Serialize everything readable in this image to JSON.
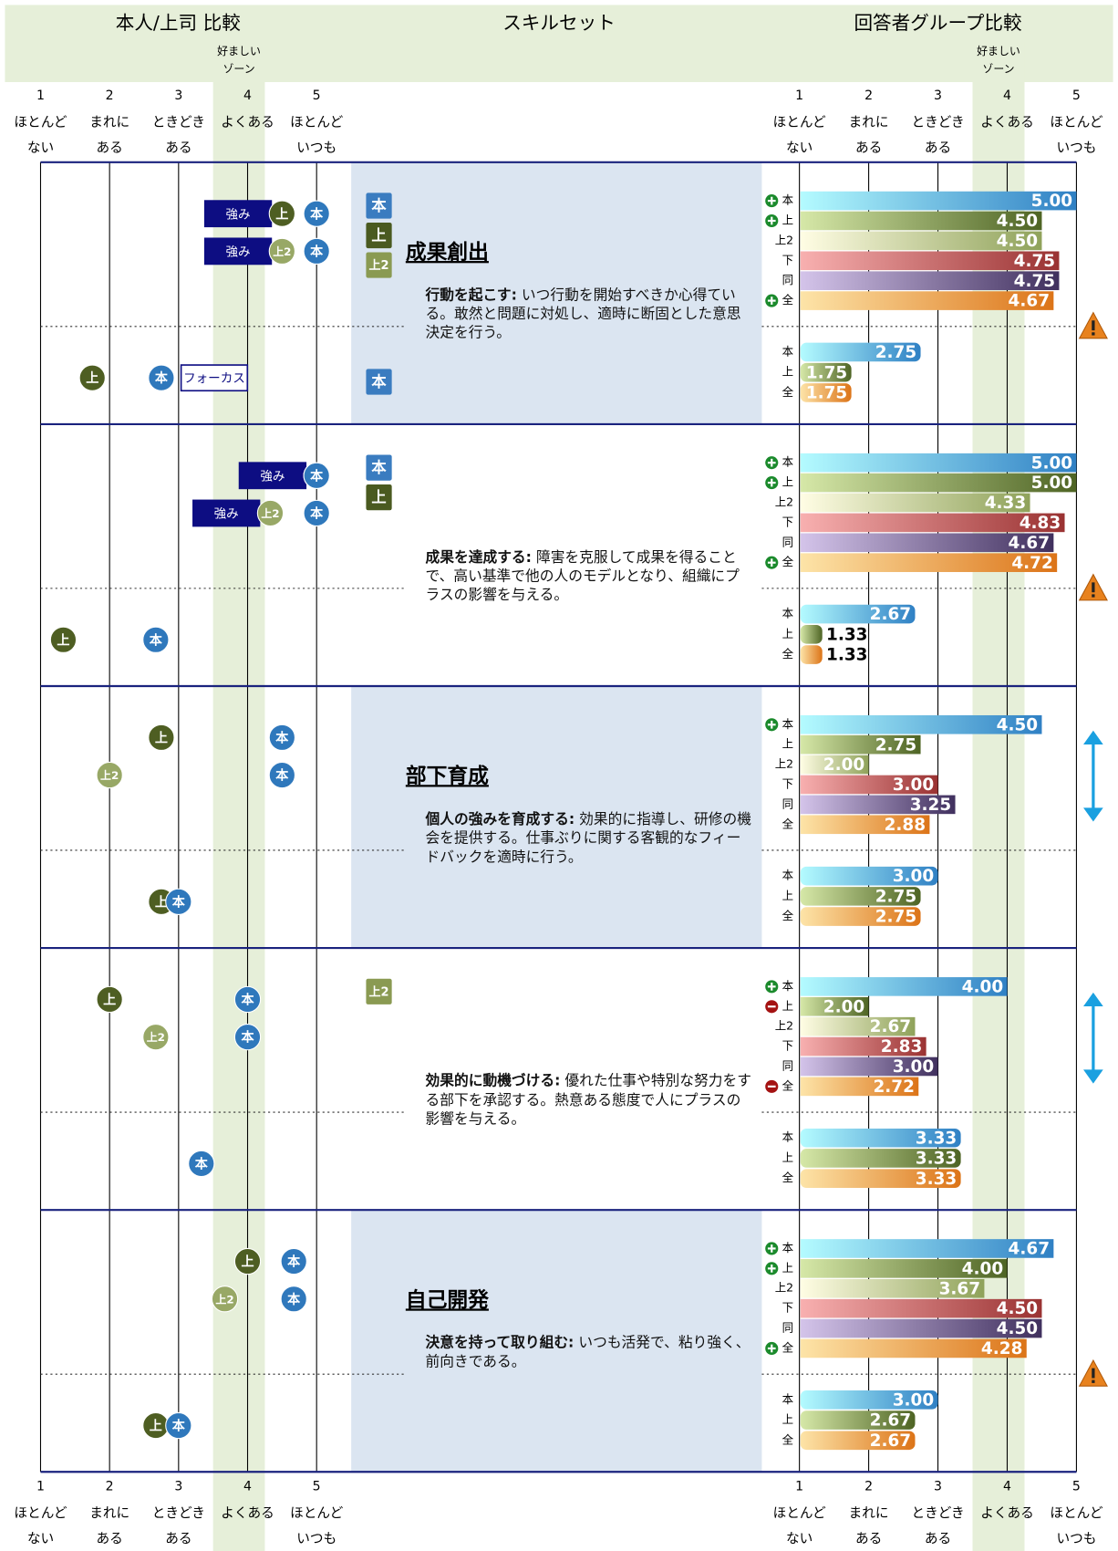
{
  "header": {
    "left_title": "本人/上司 比較",
    "center_title": "スキルセット",
    "right_title": "回答者グループ比較",
    "zone_label": [
      "好ましい",
      "ゾーン"
    ]
  },
  "scale": {
    "ticks": [
      1,
      2,
      3,
      4,
      5
    ],
    "labels": [
      [
        "ほとんど",
        "ない"
      ],
      [
        "まれに",
        "ある"
      ],
      [
        "ときどき",
        "ある"
      ],
      [
        "よくある"
      ],
      [
        "ほとんど",
        "いつも"
      ]
    ],
    "zone": [
      3.5,
      4.25
    ]
  },
  "colors": {
    "本": [
      "#b4fbff",
      "#2f80c4"
    ],
    "上": [
      "#d6e8a8",
      "#4e6424"
    ],
    "上2": [
      "#fffde4",
      "#8fa25a"
    ],
    "下": [
      "#f8b0b0",
      "#9a3232"
    ],
    "同": [
      "#d4c4ea",
      "#40305e"
    ],
    "全": [
      "#fde4a8",
      "#dc7418"
    ]
  },
  "sections": [
    {
      "skill": "成果創出",
      "name": "行動を起こす:",
      "description": "いつ行動を開始すべきか心得ている。敢然と問題に対処し、適時に断固とした意思決定を行う。",
      "flags_top": [
        "本",
        "上",
        "上2"
      ],
      "flags_bottom": [
        "本"
      ],
      "indicator": "warning",
      "badges": [
        {
          "row": 0,
          "label": "強み",
          "style": "strength"
        },
        {
          "row": 1,
          "label": "強み",
          "style": "strength"
        },
        {
          "row": 2,
          "label": "フォーカス",
          "style": "focus"
        }
      ],
      "top": [
        {
          "label": "本",
          "value": 5.0,
          "value_label": "5.00",
          "sign": "plus"
        },
        {
          "label": "上",
          "value": 4.5,
          "value_label": "4.50",
          "sign": "plus"
        },
        {
          "label": "上2",
          "value": 4.5,
          "value_label": "4.50"
        },
        {
          "label": "下",
          "value": 4.75,
          "value_label": "4.75"
        },
        {
          "label": "同",
          "value": 4.75,
          "value_label": "4.75"
        },
        {
          "label": "全",
          "value": 4.67,
          "value_label": "4.67",
          "sign": "plus"
        }
      ],
      "bottom": [
        {
          "label": "本",
          "value": 2.75,
          "value_label": "2.75"
        },
        {
          "label": "上",
          "value": 1.75,
          "value_label": "1.75"
        },
        {
          "label": "全",
          "value": 1.75,
          "value_label": "1.75"
        }
      ]
    },
    {
      "name": "成果を達成する:",
      "description": "障害を克服して成果を得ることで、高い基準で他の人のモデルとなり、組織にプラスの影響を与える。",
      "flags_top": [
        "本",
        "上"
      ],
      "indicator": "warning",
      "badges": [
        {
          "row": 0,
          "label": "強み",
          "style": "strength"
        },
        {
          "row": 1,
          "label": "強み",
          "style": "strength"
        }
      ],
      "top": [
        {
          "label": "本",
          "value": 5.0,
          "value_label": "5.00",
          "sign": "plus"
        },
        {
          "label": "上",
          "value": 5.0,
          "value_label": "5.00",
          "sign": "plus"
        },
        {
          "label": "上2",
          "value": 4.33,
          "value_label": "4.33"
        },
        {
          "label": "下",
          "value": 4.83,
          "value_label": "4.83"
        },
        {
          "label": "同",
          "value": 4.67,
          "value_label": "4.67"
        },
        {
          "label": "全",
          "value": 4.72,
          "value_label": "4.72",
          "sign": "plus"
        }
      ],
      "bottom": [
        {
          "label": "本",
          "value": 2.67,
          "value_label": "2.67"
        },
        {
          "label": "上",
          "value": 1.33,
          "value_label": "1.33"
        },
        {
          "label": "全",
          "value": 1.33,
          "value_label": "1.33"
        }
      ]
    },
    {
      "skill": "部下育成",
      "name": "個人の強みを育成する:",
      "description": "効果的に指導し、研修の機会を提供する。仕事ぶりに関する客観的なフィードバックを適時に行う。",
      "indicator": "arrows",
      "top": [
        {
          "label": "本",
          "value": 4.5,
          "value_label": "4.50",
          "sign": "plus"
        },
        {
          "label": "上",
          "value": 2.75,
          "value_label": "2.75"
        },
        {
          "label": "上2",
          "value": 2.0,
          "value_label": "2.00"
        },
        {
          "label": "下",
          "value": 3.0,
          "value_label": "3.00"
        },
        {
          "label": "同",
          "value": 3.25,
          "value_label": "3.25"
        },
        {
          "label": "全",
          "value": 2.88,
          "value_label": "2.88"
        }
      ],
      "bottom": [
        {
          "label": "本",
          "value": 3.0,
          "value_label": "3.00"
        },
        {
          "label": "上",
          "value": 2.75,
          "value_label": "2.75"
        },
        {
          "label": "全",
          "value": 2.75,
          "value_label": "2.75"
        }
      ]
    },
    {
      "name": "効果的に動機づける:",
      "description": "優れた仕事や特別な努力をする部下を承認する。熱意ある態度で人にプラスの影響を与える。",
      "flags_top": [
        "上2"
      ],
      "indicator": "arrows",
      "top": [
        {
          "label": "本",
          "value": 4.0,
          "value_label": "4.00",
          "sign": "plus"
        },
        {
          "label": "上",
          "value": 2.0,
          "value_label": "2.00",
          "sign": "minus"
        },
        {
          "label": "上2",
          "value": 2.67,
          "value_label": "2.67"
        },
        {
          "label": "下",
          "value": 2.83,
          "value_label": "2.83"
        },
        {
          "label": "同",
          "value": 3.0,
          "value_label": "3.00"
        },
        {
          "label": "全",
          "value": 2.72,
          "value_label": "2.72",
          "sign": "minus"
        }
      ],
      "bottom": [
        {
          "label": "本",
          "value": 3.33,
          "value_label": "3.33"
        },
        {
          "label": "上",
          "value": 3.33,
          "value_label": "3.33"
        },
        {
          "label": "全",
          "value": 3.33,
          "value_label": "3.33"
        }
      ]
    },
    {
      "skill": "自己開発",
      "name": "決意を持って取り組む:",
      "description": "いつも活発で、粘り強く、前向きである。",
      "indicator": "warning",
      "top": [
        {
          "label": "本",
          "value": 4.67,
          "value_label": "4.67",
          "sign": "plus"
        },
        {
          "label": "上",
          "value": 4.0,
          "value_label": "4.00",
          "sign": "plus"
        },
        {
          "label": "上2",
          "value": 3.67,
          "value_label": "3.67"
        },
        {
          "label": "下",
          "value": 4.5,
          "value_label": "4.50"
        },
        {
          "label": "同",
          "value": 4.5,
          "value_label": "4.50"
        },
        {
          "label": "全",
          "value": 4.28,
          "value_label": "4.28",
          "sign": "plus"
        }
      ],
      "bottom": [
        {
          "label": "本",
          "value": 3.0,
          "value_label": "3.00"
        },
        {
          "label": "上",
          "value": 2.67,
          "value_label": "2.67"
        },
        {
          "label": "全",
          "value": 2.67,
          "value_label": "2.67"
        }
      ]
    }
  ]
}
